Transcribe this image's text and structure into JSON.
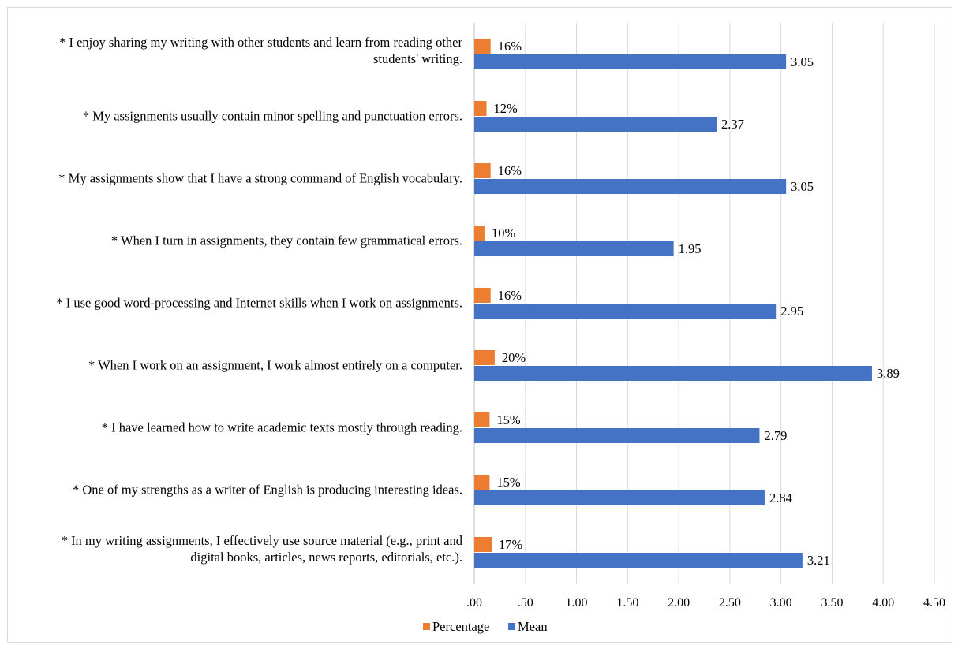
{
  "chart_data": {
    "type": "bar",
    "orientation": "horizontal",
    "categories": [
      [
        "*  I enjoy sharing my writing with other students and learn from reading other",
        "students' writing."
      ],
      [
        "*  My assignments usually contain minor spelling and punctuation errors."
      ],
      [
        "*  My assignments show that I have a strong command of English vocabulary."
      ],
      [
        "*  When I turn in assignments, they contain few grammatical errors."
      ],
      [
        "*  I use good word-processing and Internet skills when I work on assignments."
      ],
      [
        "*  When I work on an assignment, I work almost entirely on a computer."
      ],
      [
        "*  I have learned how to write academic texts mostly through reading."
      ],
      [
        "*  One of my strengths as a writer of English is producing interesting ideas."
      ],
      [
        "*  In my writing assignments, I effectively use source material (e.g., print and",
        "digital books, articles, news reports, editorials, etc.)."
      ]
    ],
    "series": [
      {
        "name": "Percentage",
        "color": "#ED7D31",
        "values": [
          0.16,
          0.12,
          0.16,
          0.1,
          0.16,
          0.2,
          0.15,
          0.15,
          0.17
        ],
        "labels": [
          "16%",
          "12%",
          "16%",
          "10%",
          "16%",
          "20%",
          "15%",
          "15%",
          "17%"
        ]
      },
      {
        "name": "Mean",
        "color": "#4472C4",
        "values": [
          3.05,
          2.37,
          3.05,
          1.95,
          2.95,
          3.89,
          2.79,
          2.84,
          3.21
        ],
        "labels": [
          "3.05",
          "2.37",
          "3.05",
          "1.95",
          "2.95",
          "3.89",
          "2.79",
          "2.84",
          "3.21"
        ]
      }
    ],
    "xlim": [
      0,
      4.5
    ],
    "xticks": [
      0,
      0.5,
      1,
      1.5,
      2,
      2.5,
      3,
      3.5,
      4,
      4.5
    ],
    "xtick_labels": [
      ".00",
      ".50",
      "1.00",
      "1.50",
      "2.00",
      "2.50",
      "3.00",
      "3.50",
      "4.00",
      "4.50"
    ],
    "grid": true,
    "gridline_color": "#d9d9d9",
    "legend_position": "bottom"
  }
}
